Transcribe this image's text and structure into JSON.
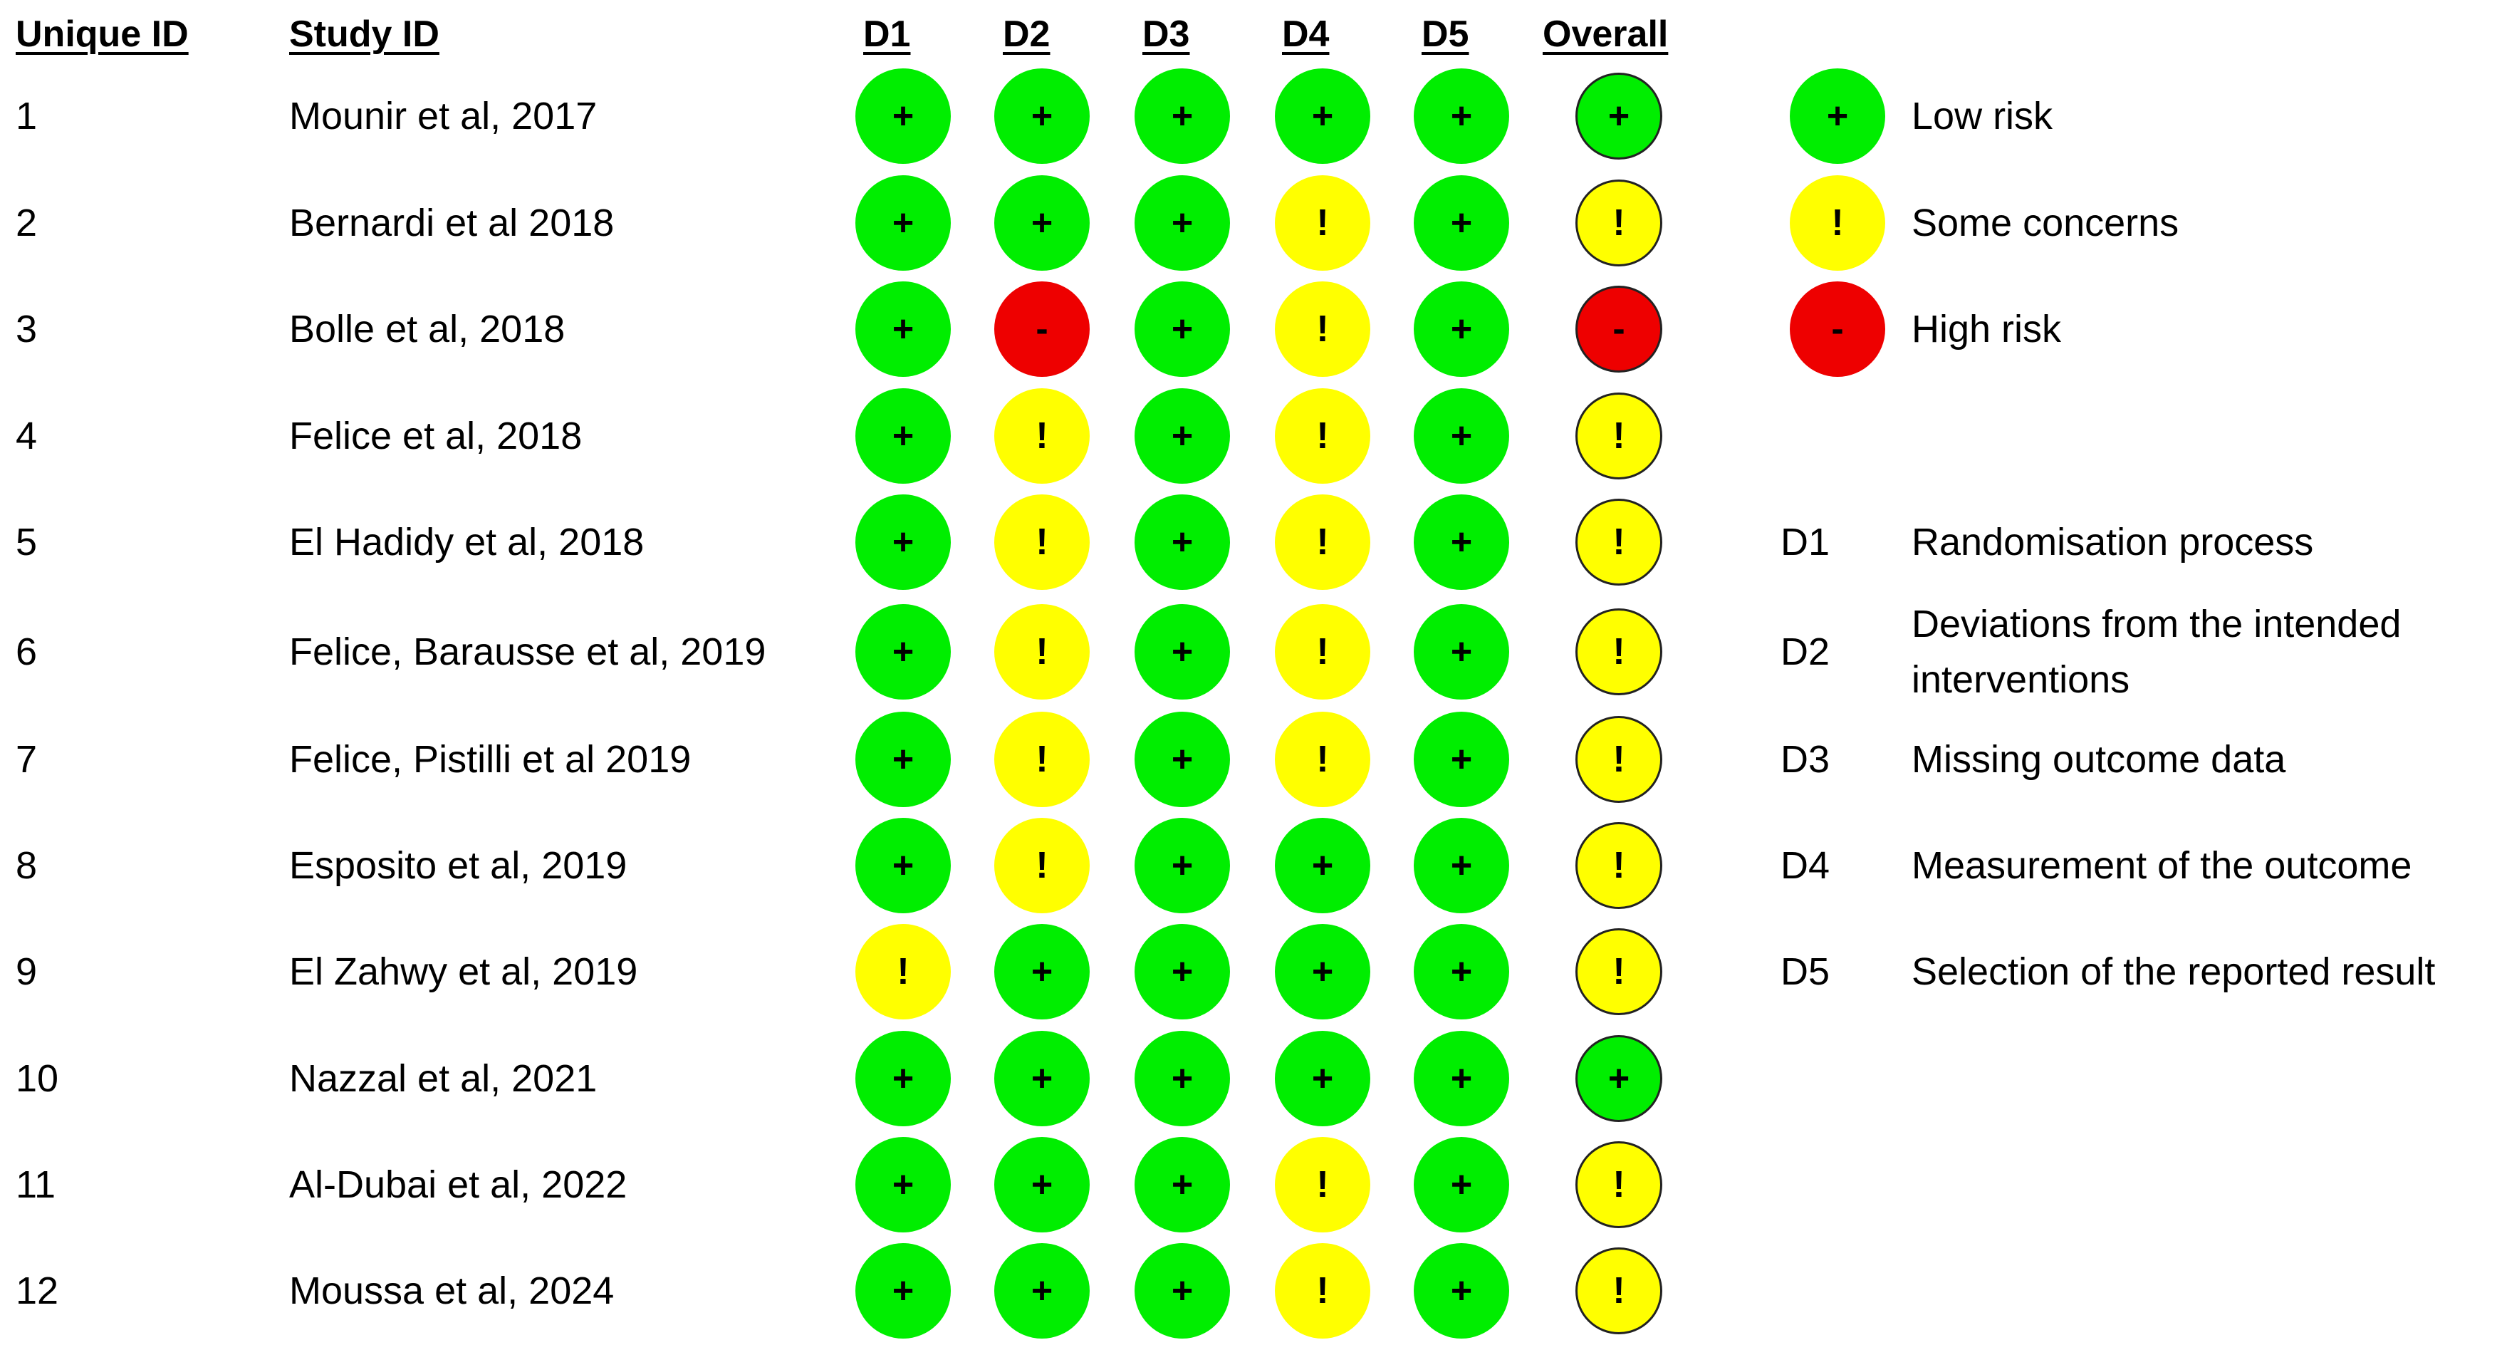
{
  "headers": {
    "unique_id": "Unique ID",
    "study_id": "Study ID",
    "domains": [
      "D1",
      "D2",
      "D3",
      "D4",
      "D5"
    ],
    "overall": "Overall"
  },
  "colors": {
    "low": "#00ee00",
    "some": "#ffff00",
    "high": "#ee0000"
  },
  "symbols": {
    "low": "+",
    "some": "!",
    "high": "-"
  },
  "rows": [
    {
      "id": "1",
      "study": "Mounir et al, 2017",
      "d": [
        "low",
        "low",
        "low",
        "low",
        "low"
      ],
      "overall": "low"
    },
    {
      "id": "2",
      "study": "Bernardi et al 2018",
      "d": [
        "low",
        "low",
        "low",
        "some",
        "low"
      ],
      "overall": "some"
    },
    {
      "id": "3",
      "study": "Bolle et al, 2018",
      "d": [
        "low",
        "high",
        "low",
        "some",
        "low"
      ],
      "overall": "high"
    },
    {
      "id": "4",
      "study": "Felice et al, 2018",
      "d": [
        "low",
        "some",
        "low",
        "some",
        "low"
      ],
      "overall": "some"
    },
    {
      "id": "5",
      "study": "El Hadidy et al, 2018",
      "d": [
        "low",
        "some",
        "low",
        "some",
        "low"
      ],
      "overall": "some"
    },
    {
      "id": "6",
      "study": "Felice, Barausse et al, 2019",
      "d": [
        "low",
        "some",
        "low",
        "some",
        "low"
      ],
      "overall": "some"
    },
    {
      "id": "7",
      "study": "Felice, Pistilli et al 2019",
      "d": [
        "low",
        "some",
        "low",
        "some",
        "low"
      ],
      "overall": "some"
    },
    {
      "id": "8",
      "study": "Esposito et al, 2019",
      "d": [
        "low",
        "some",
        "low",
        "low",
        "low"
      ],
      "overall": "some"
    },
    {
      "id": "9",
      "study": "El Zahwy et al, 2019",
      "d": [
        "some",
        "low",
        "low",
        "low",
        "low"
      ],
      "overall": "some"
    },
    {
      "id": "10",
      "study": "Nazzal et al, 2021",
      "d": [
        "low",
        "low",
        "low",
        "low",
        "low"
      ],
      "overall": "low"
    },
    {
      "id": "11",
      "study": "Al-Dubai et al, 2022",
      "d": [
        "low",
        "low",
        "low",
        "some",
        "low"
      ],
      "overall": "some"
    },
    {
      "id": "12",
      "study": "Moussa et al, 2024",
      "d": [
        "low",
        "low",
        "low",
        "some",
        "low"
      ],
      "overall": "some"
    }
  ],
  "legend": {
    "judgements": [
      {
        "level": "low",
        "label": "Low risk"
      },
      {
        "level": "some",
        "label": "Some concerns"
      },
      {
        "level": "high",
        "label": "High risk"
      }
    ],
    "domains": [
      {
        "code": "D1",
        "label": "Randomisation process"
      },
      {
        "code": "D2",
        "label": "Deviations from the intended interventions"
      },
      {
        "code": "D3",
        "label": "Missing outcome data"
      },
      {
        "code": "D4",
        "label": "Measurement of the outcome"
      },
      {
        "code": "D5",
        "label": "Selection of the reported result"
      }
    ]
  }
}
